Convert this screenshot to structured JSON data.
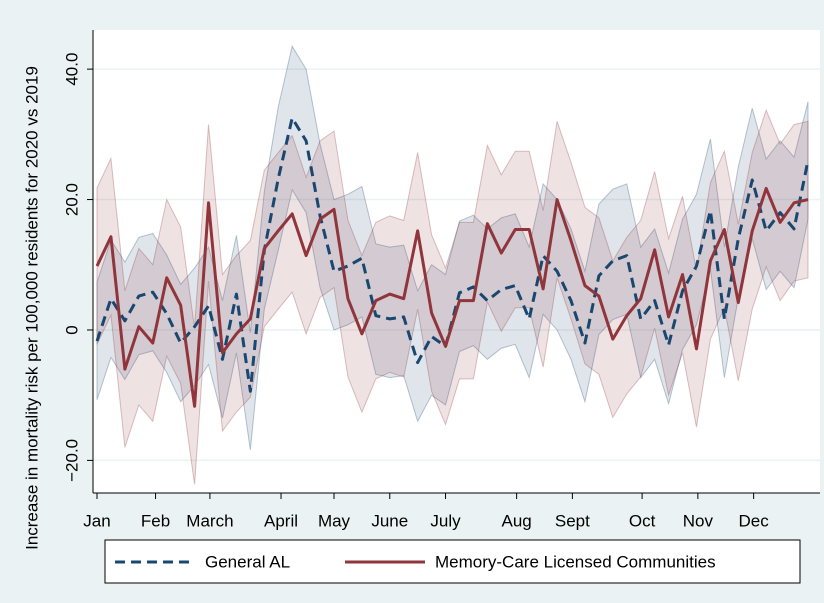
{
  "chart_data": {
    "type": "line",
    "y_label": "Increase in mortality risk per 100,000 residents for 2020 vs 2019",
    "x": [
      1,
      2,
      3,
      4,
      5,
      6,
      7,
      8,
      9,
      10,
      11,
      12,
      13,
      14,
      15,
      16,
      17,
      18,
      19,
      20,
      21,
      22,
      23,
      24,
      25,
      26,
      27,
      28,
      29,
      30,
      31,
      32,
      33,
      34,
      35,
      36,
      37,
      38,
      39,
      40,
      41,
      42,
      43,
      44,
      45,
      46,
      47,
      48,
      49,
      50,
      51,
      52
    ],
    "xlim": [
      1,
      52
    ],
    "xticks": [
      {
        "value": 1,
        "label": "Jan"
      },
      {
        "value": 5.2,
        "label": "Feb"
      },
      {
        "value": 9.1,
        "label": "March"
      },
      {
        "value": 14.2,
        "label": "April"
      },
      {
        "value": 18,
        "label": "May"
      },
      {
        "value": 22,
        "label": "June"
      },
      {
        "value": 26,
        "label": "July"
      },
      {
        "value": 31.1,
        "label": "Aug"
      },
      {
        "value": 35.1,
        "label": "Sept"
      },
      {
        "value": 40.1,
        "label": "Oct"
      },
      {
        "value": 44.1,
        "label": "Nov"
      },
      {
        "value": 48.1,
        "label": "Dec"
      }
    ],
    "ylim": [
      -25,
      46
    ],
    "yticks": [
      {
        "value": -20,
        "label": "−20.0"
      },
      0,
      {
        "value": 20,
        "label": "20.0"
      },
      {
        "value": 40,
        "label": "40.0"
      }
    ],
    "grid": true,
    "series": [
      {
        "name": "General AL",
        "color": "#1a476f",
        "dash": true,
        "values": [
          -1.7,
          4.8,
          1.4,
          5.2,
          5.8,
          2.5,
          -2,
          0.5,
          3.7,
          -4.5,
          5.5,
          -9.4,
          12.2,
          23.2,
          32.5,
          29,
          17.5,
          9,
          9.8,
          11,
          2.2,
          1.7,
          2,
          -5,
          -1,
          -2.5,
          5.7,
          6.6,
          4.5,
          6.2,
          6.8,
          1.7,
          11.4,
          9,
          4.5,
          -2,
          8.3,
          10.6,
          11.4,
          1.7,
          4.5,
          -2.3,
          6,
          9.8,
          18.3,
          1.7,
          14,
          23,
          15.2,
          18,
          15.5,
          26
        ],
        "upper": [
          7.3,
          13.8,
          10.4,
          14.2,
          14.8,
          11.5,
          7,
          9.5,
          12.7,
          4.5,
          14.5,
          -0.4,
          21.2,
          34.2,
          43.5,
          40,
          28.5,
          20,
          20.8,
          22,
          13.2,
          12.7,
          13,
          6,
          10,
          8.5,
          16.7,
          17.6,
          15.5,
          17.2,
          17.8,
          12.7,
          22.4,
          20,
          15.5,
          9,
          19.3,
          21.6,
          22.4,
          12.7,
          15.5,
          8.7,
          17,
          20.8,
          29.3,
          12.7,
          25,
          34,
          26.2,
          29,
          26.5,
          35
        ],
        "lower": [
          -10.7,
          -4.2,
          -7.6,
          -3.8,
          -3.2,
          -6.5,
          -11,
          -8.5,
          -5.3,
          -13.5,
          -3.5,
          -18.4,
          3.2,
          12.2,
          21.5,
          18,
          6.5,
          0,
          0.8,
          2,
          -6.8,
          -7.3,
          -7,
          -14,
          -10,
          -11.5,
          -3.3,
          -2.4,
          -4.5,
          -2.8,
          -2.2,
          -7.3,
          2.4,
          0,
          -4.5,
          -11,
          -0.7,
          1.6,
          2.4,
          -7.3,
          -4.5,
          -11.3,
          -3,
          0.8,
          9.3,
          -7.3,
          5,
          14,
          6.2,
          9,
          6.5,
          17
        ]
      },
      {
        "name": "Memory-Care Licensed Communities",
        "color": "#90353b",
        "dash": false,
        "values": [
          9.8,
          14.3,
          -6,
          0.5,
          -2,
          8,
          3.8,
          -11.7,
          19.5,
          -3.5,
          -0.6,
          1.7,
          12.5,
          15.2,
          17.8,
          11.4,
          17,
          18.5,
          4.8,
          -0.6,
          4.5,
          5.5,
          4.8,
          15.2,
          2.6,
          -2.5,
          4.5,
          4.5,
          16.3,
          11.8,
          15.4,
          15.4,
          6.3,
          20,
          13.7,
          6.8,
          5.2,
          -1.4,
          2.2,
          4.8,
          12.3,
          2,
          8.5,
          -2.9,
          10.6,
          15.4,
          4.2,
          15.2,
          21.7,
          16.5,
          19.5,
          20
        ],
        "upper": [
          21.8,
          26.3,
          6,
          12.5,
          10,
          20,
          15.8,
          0.3,
          31.5,
          8.5,
          11.4,
          13.7,
          24.5,
          27.2,
          29.8,
          23.4,
          29,
          30.5,
          16.8,
          11.4,
          16.5,
          17.5,
          16.8,
          27.2,
          14.6,
          9.5,
          16.5,
          16.5,
          28.3,
          23.8,
          27.4,
          27.4,
          18.3,
          32,
          25.7,
          18.8,
          17.2,
          10.6,
          14.2,
          16.8,
          24.3,
          14,
          20.5,
          9.1,
          22.6,
          27.4,
          16.2,
          27.2,
          33.7,
          28.5,
          31.5,
          32
        ],
        "lower": [
          -2.2,
          2.3,
          -18,
          -11.5,
          -14,
          -4,
          -8.2,
          -23.7,
          7.5,
          -15.5,
          -12.6,
          -10.3,
          0.5,
          3.2,
          5.8,
          -0.6,
          5,
          6.5,
          -7.2,
          -12.6,
          -7.5,
          -6.5,
          -7.2,
          3.2,
          -9.4,
          -14.5,
          -7.5,
          -7.5,
          4.3,
          -0.2,
          3.4,
          3.4,
          -5.7,
          8,
          1.7,
          -5.2,
          -6.8,
          -13.4,
          -9.8,
          -7.2,
          0.3,
          -10,
          -3.5,
          -14.9,
          -1.4,
          3.4,
          -7.8,
          3.2,
          9.7,
          4.5,
          7.5,
          8
        ]
      }
    ]
  }
}
